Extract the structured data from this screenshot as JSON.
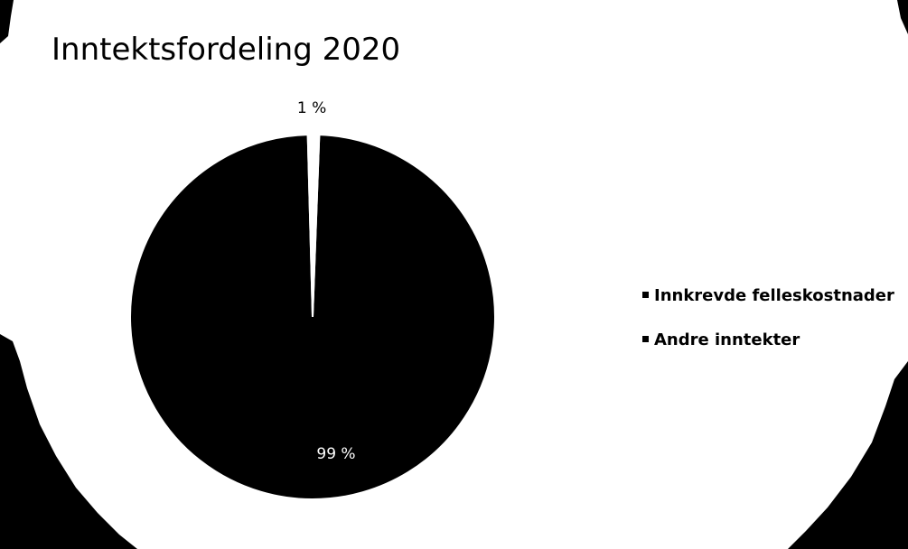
{
  "chart_data": {
    "type": "pie",
    "title": "Inntektsfordeling 2020",
    "categories": [
      "Innkrevde felleskostnader",
      "Andre inntekter"
    ],
    "values": [
      99,
      1
    ],
    "data_labels": [
      "99 %",
      "1 %"
    ],
    "legend_position": "right",
    "colors": {
      "slices": [
        "#000000",
        "#ffffff"
      ],
      "slice_border": "#ffffff",
      "label_on_dark": "#ffffff",
      "label_on_light": "#000000",
      "legend_marker": "#000000"
    }
  }
}
